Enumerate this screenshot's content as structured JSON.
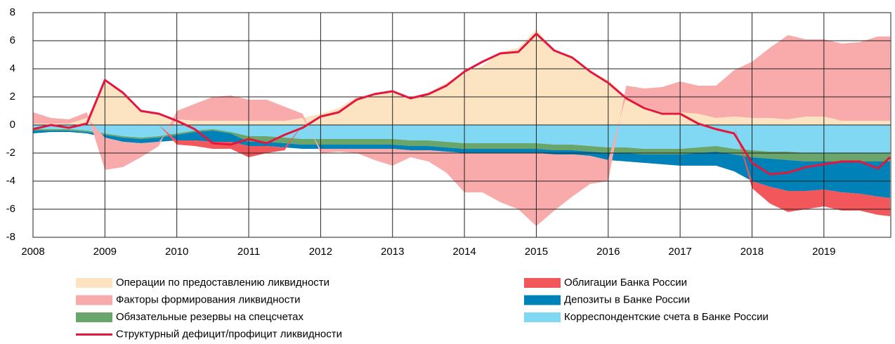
{
  "chart_data": {
    "type": "stacked_area",
    "x": [
      2008,
      2008.25,
      2008.5,
      2008.75,
      2009,
      2009.25,
      2009.5,
      2009.75,
      2010,
      2010.25,
      2010.5,
      2010.75,
      2011,
      2011.25,
      2011.5,
      2011.75,
      2012,
      2012.25,
      2012.5,
      2012.75,
      2013,
      2013.25,
      2013.5,
      2013.75,
      2014,
      2014.25,
      2014.5,
      2014.75,
      2015,
      2015.25,
      2015.5,
      2015.75,
      2016,
      2016.25,
      2016.5,
      2016.75,
      2017,
      2017.25,
      2017.5,
      2017.75,
      2018,
      2018.25,
      2018.5,
      2018.75,
      2019,
      2019.25,
      2019.5,
      2019.75,
      2019.92
    ],
    "xlim": [
      2008,
      2019.93
    ],
    "xticks": [
      2008,
      2009,
      2010,
      2011,
      2012,
      2013,
      2014,
      2015,
      2016,
      2017,
      2018,
      2019
    ],
    "ylim": [
      -8,
      8
    ],
    "yticks": [
      -8,
      -6,
      -4,
      -2,
      0,
      2,
      4,
      6,
      8
    ],
    "grid": true,
    "series": [
      {
        "name": "Корреспондентские счета в Банке России",
        "color": "#80d8f3",
        "values": [
          -0.3,
          -0.3,
          -0.3,
          -0.4,
          -0.6,
          -0.8,
          -0.9,
          -0.8,
          -0.6,
          -0.4,
          -0.3,
          -0.5,
          -0.8,
          -0.8,
          -0.9,
          -1.0,
          -1.0,
          -1.0,
          -1.0,
          -1.0,
          -1.0,
          -1.1,
          -1.1,
          -1.2,
          -1.3,
          -1.3,
          -1.3,
          -1.3,
          -1.3,
          -1.4,
          -1.4,
          -1.5,
          -1.6,
          -1.6,
          -1.7,
          -1.7,
          -1.7,
          -1.6,
          -1.5,
          -1.7,
          -1.8,
          -1.9,
          -1.9,
          -2.0,
          -2.0,
          -2.0,
          -2.0,
          -2.0,
          -2.0
        ]
      },
      {
        "name": "Обязательные резервы на спецсчетах",
        "color": "#6aa56c",
        "values": [
          -0.1,
          -0.1,
          -0.1,
          -0.1,
          -0.1,
          -0.1,
          -0.1,
          -0.1,
          -0.1,
          -0.1,
          -0.1,
          -0.1,
          -0.4,
          -0.4,
          -0.4,
          -0.4,
          -0.4,
          -0.4,
          -0.4,
          -0.4,
          -0.4,
          -0.4,
          -0.4,
          -0.4,
          -0.4,
          -0.4,
          -0.4,
          -0.4,
          -0.4,
          -0.4,
          -0.4,
          -0.4,
          -0.4,
          -0.4,
          -0.4,
          -0.4,
          -0.4,
          -0.4,
          -0.4,
          -0.4,
          -0.5,
          -0.5,
          -0.6,
          -0.6,
          -0.6,
          -0.6,
          -0.6,
          -0.6,
          -0.6
        ]
      },
      {
        "name": "Депозиты в Банке России",
        "color": "#0082b8",
        "values": [
          -0.2,
          -0.1,
          -0.1,
          -0.1,
          -0.2,
          -0.3,
          -0.3,
          -0.3,
          -0.4,
          -0.6,
          -0.8,
          -0.6,
          -0.3,
          -0.3,
          -0.3,
          -0.3,
          -0.3,
          -0.3,
          -0.3,
          -0.3,
          -0.3,
          -0.3,
          -0.3,
          -0.3,
          -0.3,
          -0.3,
          -0.3,
          -0.3,
          -0.3,
          -0.3,
          -0.3,
          -0.3,
          -0.5,
          -0.6,
          -0.6,
          -0.7,
          -0.8,
          -0.9,
          -1.0,
          -1.2,
          -1.7,
          -2.0,
          -2.2,
          -2.1,
          -2.0,
          -2.2,
          -2.3,
          -2.5,
          -2.6
        ]
      },
      {
        "name": "Облигации Банка России",
        "color": "#f2575b",
        "values": [
          0,
          0,
          0,
          0,
          0,
          0,
          0,
          0,
          -0.3,
          -0.4,
          -0.5,
          -0.5,
          -0.8,
          -0.5,
          -0.2,
          0,
          0,
          0,
          0,
          0,
          0,
          0,
          0,
          0,
          0,
          0,
          0,
          0,
          0,
          0,
          0,
          0,
          0,
          0,
          0,
          0,
          0,
          0,
          0,
          0,
          -0.5,
          -1.2,
          -1.5,
          -1.3,
          -1.2,
          -1.3,
          -1.2,
          -1.3,
          -1.3
        ]
      },
      {
        "name": "Операции по предоставлению ликвидности",
        "color": "#fce4c2",
        "values": [
          0.1,
          0.1,
          0.1,
          0.5,
          3.0,
          2.3,
          1.0,
          0.8,
          0.4,
          0.3,
          0.3,
          0.3,
          0.3,
          0.3,
          0.3,
          0.5,
          0.8,
          1.2,
          2.0,
          2.2,
          2.3,
          2.0,
          2.3,
          3.0,
          3.8,
          4.2,
          5.2,
          5.5,
          6.8,
          5.3,
          4.8,
          3.8,
          3.2,
          2.0,
          1.3,
          0.9,
          0.9,
          0.8,
          0.5,
          0.6,
          0.5,
          0.5,
          0.4,
          0.6,
          0.6,
          0.3,
          0.3,
          0.3,
          0.3
        ]
      },
      {
        "name": "Факторы формирования ликвидности",
        "color": "#f9abab",
        "values": [
          0.8,
          0.4,
          0.3,
          0.4,
          -2.3,
          -1.8,
          -1.0,
          -0.3,
          0.6,
          1.2,
          1.7,
          1.8,
          1.5,
          1.5,
          1.0,
          0.3,
          -0.3,
          -0.2,
          -0.3,
          -0.8,
          -1.2,
          -0.5,
          -0.8,
          -1.5,
          -2.8,
          -2.8,
          -3.5,
          -4.0,
          -5.2,
          -4.0,
          -3.0,
          -2.0,
          -1.5,
          0.8,
          1.3,
          1.8,
          2.2,
          2.0,
          2.3,
          3.3,
          4.0,
          5.0,
          6.0,
          5.5,
          5.5,
          5.5,
          5.6,
          6.0,
          6.0
        ]
      },
      {
        "name": "Структурный дефицит/профицит ликвидности",
        "color": "#e3173e",
        "type": "line",
        "values": [
          -0.3,
          0,
          -0.2,
          0.1,
          3.2,
          2.3,
          1.0,
          0.8,
          0.3,
          -0.3,
          -1.3,
          -1.4,
          -1.0,
          -1.3,
          -0.7,
          -0.2,
          0.6,
          0.9,
          1.8,
          2.2,
          2.4,
          1.9,
          2.2,
          2.8,
          3.8,
          4.5,
          5.1,
          5.2,
          6.5,
          5.3,
          4.8,
          3.8,
          3.0,
          1.9,
          1.2,
          0.8,
          0.8,
          0.1,
          -0.3,
          -0.6,
          -2.7,
          -3.5,
          -3.4,
          -3.0,
          -2.8,
          -2.6,
          -2.6,
          -3.1,
          -2.3
        ]
      }
    ]
  }
}
